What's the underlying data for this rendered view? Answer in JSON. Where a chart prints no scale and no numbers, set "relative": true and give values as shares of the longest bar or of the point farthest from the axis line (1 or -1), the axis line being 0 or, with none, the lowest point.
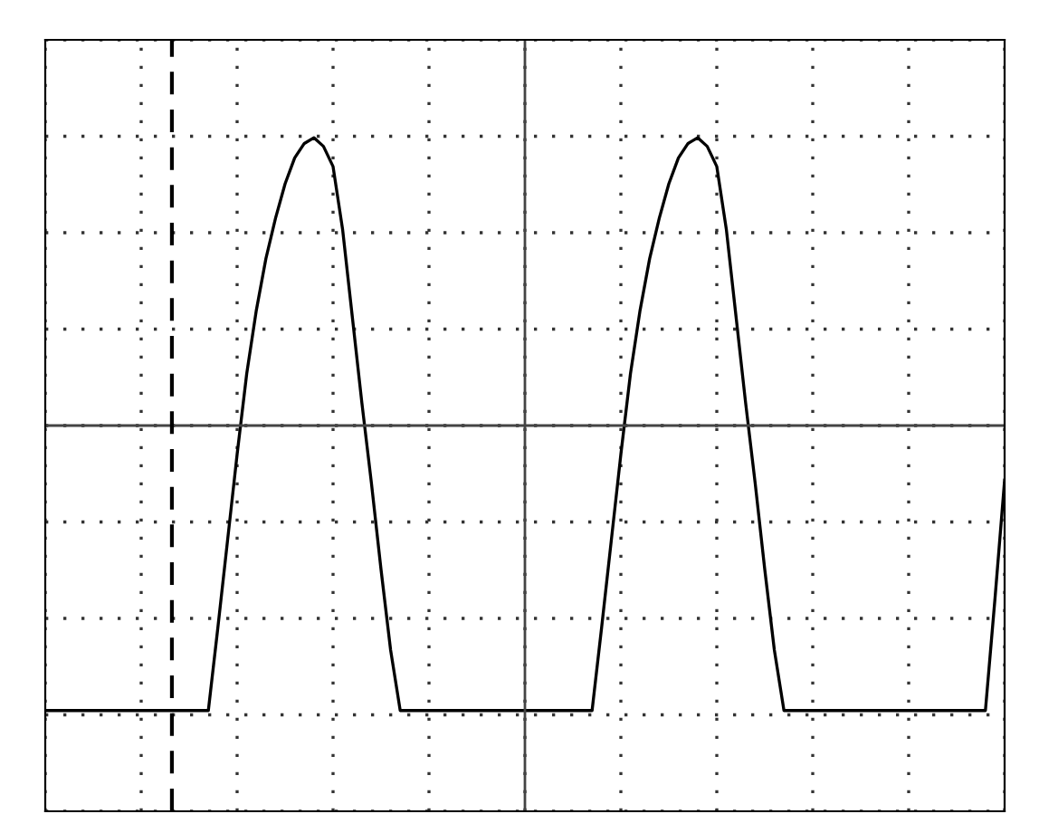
{
  "chart_data": {
    "type": "line",
    "relative": true,
    "color": "#000000",
    "categories": [
      null,
      null,
      null,
      null,
      null,
      null,
      null,
      null,
      null,
      null,
      null,
      null,
      null,
      null,
      null,
      null,
      null,
      null,
      null,
      null,
      null,
      null,
      null,
      null,
      null,
      null,
      null,
      null,
      null,
      null,
      null,
      null,
      null,
      null,
      null,
      null,
      null,
      null,
      null,
      null,
      null,
      null,
      null,
      null,
      null,
      null,
      null,
      null,
      null,
      null,
      null,
      null,
      null,
      null,
      null,
      null,
      null,
      null,
      null,
      null,
      null,
      null,
      null,
      null,
      null,
      null,
      null,
      null,
      null,
      null,
      null,
      null,
      null,
      null,
      null,
      null,
      null,
      null,
      null,
      null,
      null,
      null,
      null,
      null,
      null,
      null,
      null,
      null,
      null,
      null,
      null,
      null,
      null,
      null,
      null,
      null,
      null,
      null,
      null,
      null,
      null
    ],
    "values": [
      -0.99,
      -0.99,
      -0.99,
      -0.99,
      -0.99,
      -0.99,
      -0.99,
      -0.99,
      -0.99,
      -0.99,
      -0.99,
      -0.99,
      -0.99,
      -0.99,
      -0.99,
      -0.99,
      -0.99,
      -0.99,
      -0.7,
      -0.4,
      -0.1,
      0.18,
      0.4,
      0.58,
      0.72,
      0.84,
      0.93,
      0.98,
      1,
      0.97,
      0.9,
      0.68,
      0.38,
      0.08,
      -0.2,
      -0.5,
      -0.78,
      -0.99,
      -0.99,
      -0.99,
      -0.99,
      -0.99,
      -0.99,
      -0.99,
      -0.99,
      -0.99,
      -0.99,
      -0.99,
      -0.99,
      -0.99,
      -0.99,
      -0.99,
      -0.99,
      -0.99,
      -0.99,
      -0.99,
      -0.99,
      -0.99,
      -0.7,
      -0.4,
      -0.1,
      0.18,
      0.4,
      0.58,
      0.72,
      0.84,
      0.93,
      0.98,
      1,
      0.97,
      0.9,
      0.68,
      0.38,
      0.08,
      -0.2,
      -0.5,
      -0.78,
      -0.99,
      -0.99,
      -0.99,
      -0.99,
      -0.99,
      -0.99,
      -0.99,
      -0.99,
      -0.99,
      -0.99,
      -0.99,
      -0.99,
      -0.99,
      -0.99,
      -0.99,
      -0.99,
      -0.99,
      -0.99,
      -0.99,
      -0.99,
      -0.99,
      -0.99,
      -0.6,
      -0.19
    ],
    "grid": true,
    "marker": "none",
    "line_style": "solid"
  }
}
